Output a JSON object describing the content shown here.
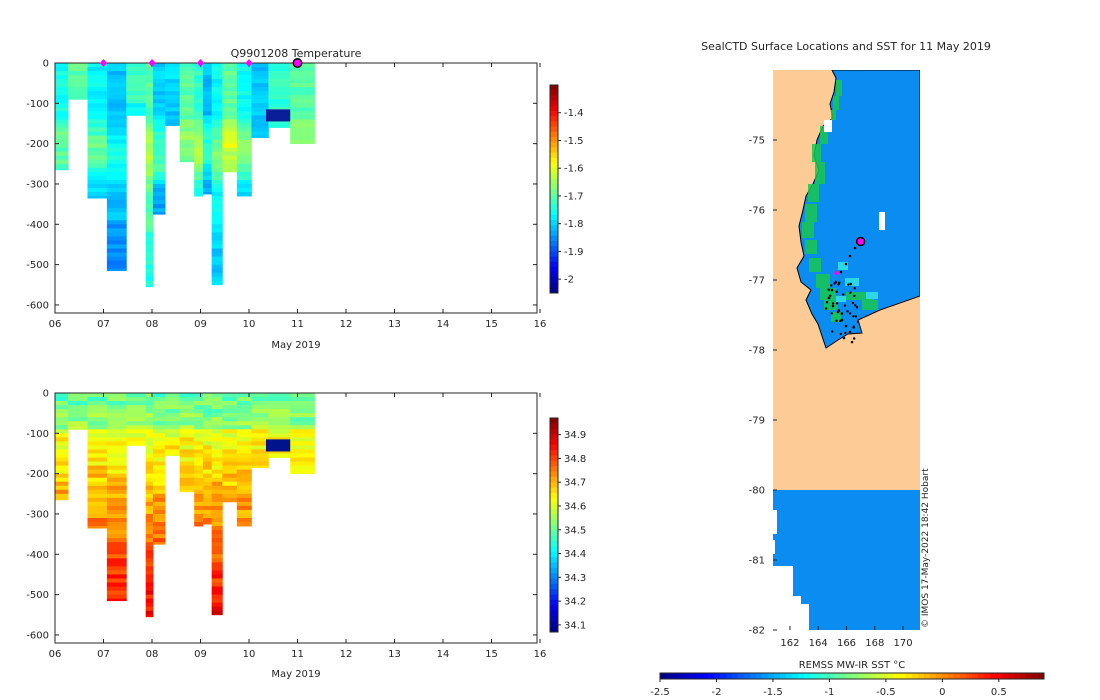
{
  "figure": {
    "top_title": "Q9901208  Temperature",
    "xlabel": "May 2019",
    "credit": "© IMOS 17-May-2022 18:42 Hobart"
  },
  "temperature_panel": {
    "colorbar_ticks": [
      "-1.4",
      "-1.5",
      "-1.6",
      "-1.7",
      "-1.8",
      "-1.9",
      "-2"
    ],
    "clim": [
      -2.05,
      -1.3
    ]
  },
  "salinity_panel": {
    "colorbar_ticks": [
      "34.9",
      "34.8",
      "34.7",
      "34.6",
      "34.5",
      "34.4",
      "34.3",
      "34.2",
      "34.1"
    ],
    "clim": [
      34.07,
      34.97
    ]
  },
  "map_panel": {
    "title": "SealCTD Surface Locations and SST for 11 May 2019",
    "colorbar_label": "REMSS MW-IR SST °C",
    "colorbar_ticks": [
      "-2.5",
      "-2",
      "-1.5",
      "-1",
      "-0.5",
      "0",
      "0.5"
    ],
    "land_color": "#fccb96",
    "sea_color": "#0a8cf0"
  },
  "chart_data": [
    {
      "type": "heatmap",
      "title": "Q9901208  Temperature",
      "xlabel": "May 2019",
      "ylabel": "",
      "xticks": [
        "06",
        "07",
        "08",
        "09",
        "10",
        "11",
        "12",
        "13",
        "14",
        "15",
        "16"
      ],
      "x_range": [
        6,
        16.2
      ],
      "yticks": [
        0,
        -100,
        -200,
        -300,
        -400,
        -500,
        -600
      ],
      "ylim": [
        -620,
        0
      ],
      "profiles": [
        {
          "x": 6.0,
          "w": 0.27,
          "depth": 265
        },
        {
          "x": 6.27,
          "w": 0.4,
          "depth": 90
        },
        {
          "x": 6.67,
          "w": 0.4,
          "depth": 335
        },
        {
          "x": 7.07,
          "w": 0.4,
          "depth": 515
        },
        {
          "x": 7.47,
          "w": 0.4,
          "depth": 130
        },
        {
          "x": 7.87,
          "w": 0.15,
          "depth": 555
        },
        {
          "x": 8.02,
          "w": 0.25,
          "depth": 375
        },
        {
          "x": 8.27,
          "w": 0.3,
          "depth": 155
        },
        {
          "x": 8.57,
          "w": 0.3,
          "depth": 245
        },
        {
          "x": 8.87,
          "w": 0.18,
          "depth": 330
        },
        {
          "x": 9.05,
          "w": 0.18,
          "depth": 325
        },
        {
          "x": 9.23,
          "w": 0.22,
          "depth": 550
        },
        {
          "x": 9.45,
          "w": 0.3,
          "depth": 270
        },
        {
          "x": 9.75,
          "w": 0.3,
          "depth": 330
        },
        {
          "x": 10.05,
          "w": 0.35,
          "depth": 185
        },
        {
          "x": 10.4,
          "w": 0.45,
          "depth": 160
        },
        {
          "x": 10.85,
          "w": 0.5,
          "depth": 200
        }
      ],
      "surface_markers_x": [
        7.0,
        8.0,
        9.0,
        10.0
      ],
      "current_position_x": 11.0,
      "colorbar_range": [
        -2.05,
        -1.3
      ]
    },
    {
      "type": "heatmap",
      "title": "",
      "xlabel": "May 2019",
      "ylabel": "",
      "xticks": [
        "06",
        "07",
        "08",
        "09",
        "10",
        "11",
        "12",
        "13",
        "14",
        "15",
        "16"
      ],
      "x_range": [
        6,
        16.2
      ],
      "yticks": [
        0,
        -100,
        -200,
        -300,
        -400,
        -500,
        -600
      ],
      "ylim": [
        -620,
        0
      ],
      "colorbar_range": [
        34.07,
        34.97
      ]
    },
    {
      "type": "heatmap",
      "title": "SealCTD Surface Locations and SST for 11 May 2019",
      "xlabel": "REMSS MW-IR SST °C",
      "ylabel": "",
      "lon_range": [
        160.8,
        171.2
      ],
      "lat_range": [
        -82,
        -74
      ],
      "xticks": [
        162,
        164,
        166,
        168,
        170
      ],
      "yticks": [
        -75,
        -76,
        -77,
        -78,
        -79,
        -80,
        -81,
        -82
      ],
      "colorbar_ticks": [
        -2.5,
        -2,
        -1.5,
        -1,
        -0.5,
        0,
        0.5
      ],
      "colorbar_range": [
        -2.5,
        0.9
      ],
      "current_position": {
        "lon": 167.0,
        "lat": -76.45
      },
      "previous_position": {
        "lon": 165.3,
        "lat": -76.9
      }
    }
  ]
}
